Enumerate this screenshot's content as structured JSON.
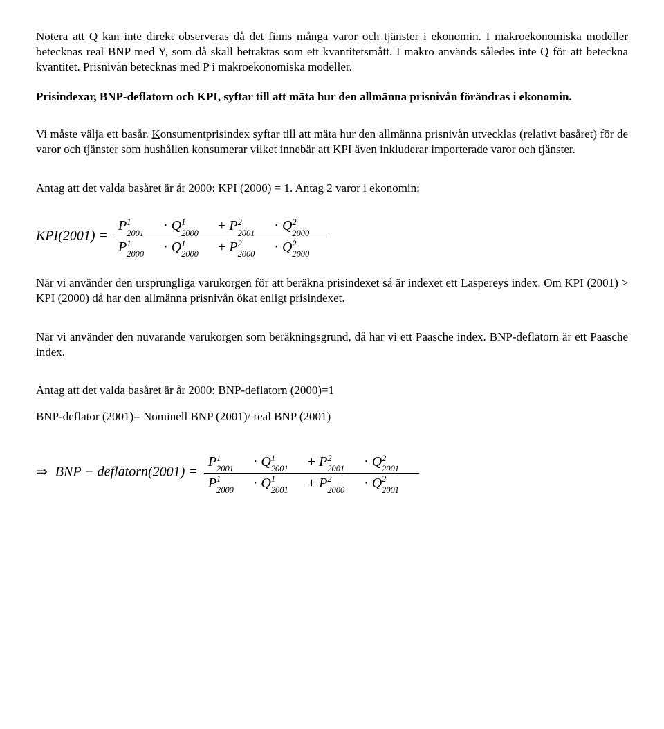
{
  "p1": "Notera att Q kan inte direkt observeras då det finns många varor och tjänster i ekonomin. I makroekonomiska modeller betecknas real BNP med Y, som då skall betraktas som ett kvantitetsmått. I makro används således inte Q för att beteckna kvantitet. Prisnivån betecknas med P i makroekonomiska modeller.",
  "p2": "Prisindexar, BNP-deflatorn och KPI, syftar till att mäta hur den allmänna prisnivån förändras i ekonomin.",
  "p3a": "Vi måste välja ett basår. ",
  "p3b": "K",
  "p3c": "onsumentprisindex syftar till att mäta hur den allmänna prisnivån utvecklas (relativt basåret) för de varor och tjänster som hushållen konsumerar vilket innebär att KPI även inkluderar importerade varor och tjänster.",
  "p4": "Antag att det valda basåret är år 2000: KPI (2000) = 1. Antag 2 varor i ekonomin:",
  "formula_kpi": {
    "lhs": "KPI(2001) =",
    "num": [
      {
        "P": "P",
        "sub": "2001",
        "sup": "1"
      },
      {
        "op": "·"
      },
      {
        "P": "Q",
        "sub": "2000",
        "sup": "1"
      },
      {
        "op": "+"
      },
      {
        "P": "P",
        "sub": "2001",
        "sup": "2"
      },
      {
        "op": "·"
      },
      {
        "P": "Q",
        "sub": "2000",
        "sup": "2"
      }
    ],
    "den": [
      {
        "P": "P",
        "sub": "2000",
        "sup": "1"
      },
      {
        "op": "·"
      },
      {
        "P": "Q",
        "sub": "2000",
        "sup": "1"
      },
      {
        "op": "+"
      },
      {
        "P": "P",
        "sub": "2000",
        "sup": "2"
      },
      {
        "op": "·"
      },
      {
        "P": "Q",
        "sub": "2000",
        "sup": "2"
      }
    ]
  },
  "p5": "När vi använder den ursprungliga varukorgen för att beräkna prisindexet så är indexet ett Laspereys index. Om KPI (2001) > KPI (2000) då har den allmänna prisnivån ökat enligt prisindexet.",
  "p6": "När vi använder den nuvarande varukorgen som beräkningsgrund, då har vi ett Paasche index. BNP-deflatorn är ett Paasche index.",
  "p7": "Antag att det valda basåret är år 2000: BNP-deflatorn (2000)=1",
  "p8": "BNP-deflator (2001)= Nominell BNP (2001)/ real BNP (2001)",
  "formula_bnp": {
    "arrow": "⇒",
    "lhs": "BNP − deflatorn(2001) =",
    "num": [
      {
        "P": "P",
        "sub": "2001",
        "sup": "1"
      },
      {
        "op": "·"
      },
      {
        "P": "Q",
        "sub": "2001",
        "sup": "1"
      },
      {
        "op": "+"
      },
      {
        "P": "P",
        "sub": "2001",
        "sup": "2"
      },
      {
        "op": "·"
      },
      {
        "P": "Q",
        "sub": "2001",
        "sup": "2"
      }
    ],
    "den": [
      {
        "P": "P",
        "sub": "2000",
        "sup": "1"
      },
      {
        "op": "·"
      },
      {
        "P": "Q",
        "sub": "2001",
        "sup": "1"
      },
      {
        "op": "+"
      },
      {
        "P": "P",
        "sub": "2000",
        "sup": "2"
      },
      {
        "op": "·"
      },
      {
        "P": "Q",
        "sub": "2001",
        "sup": "2"
      }
    ]
  }
}
